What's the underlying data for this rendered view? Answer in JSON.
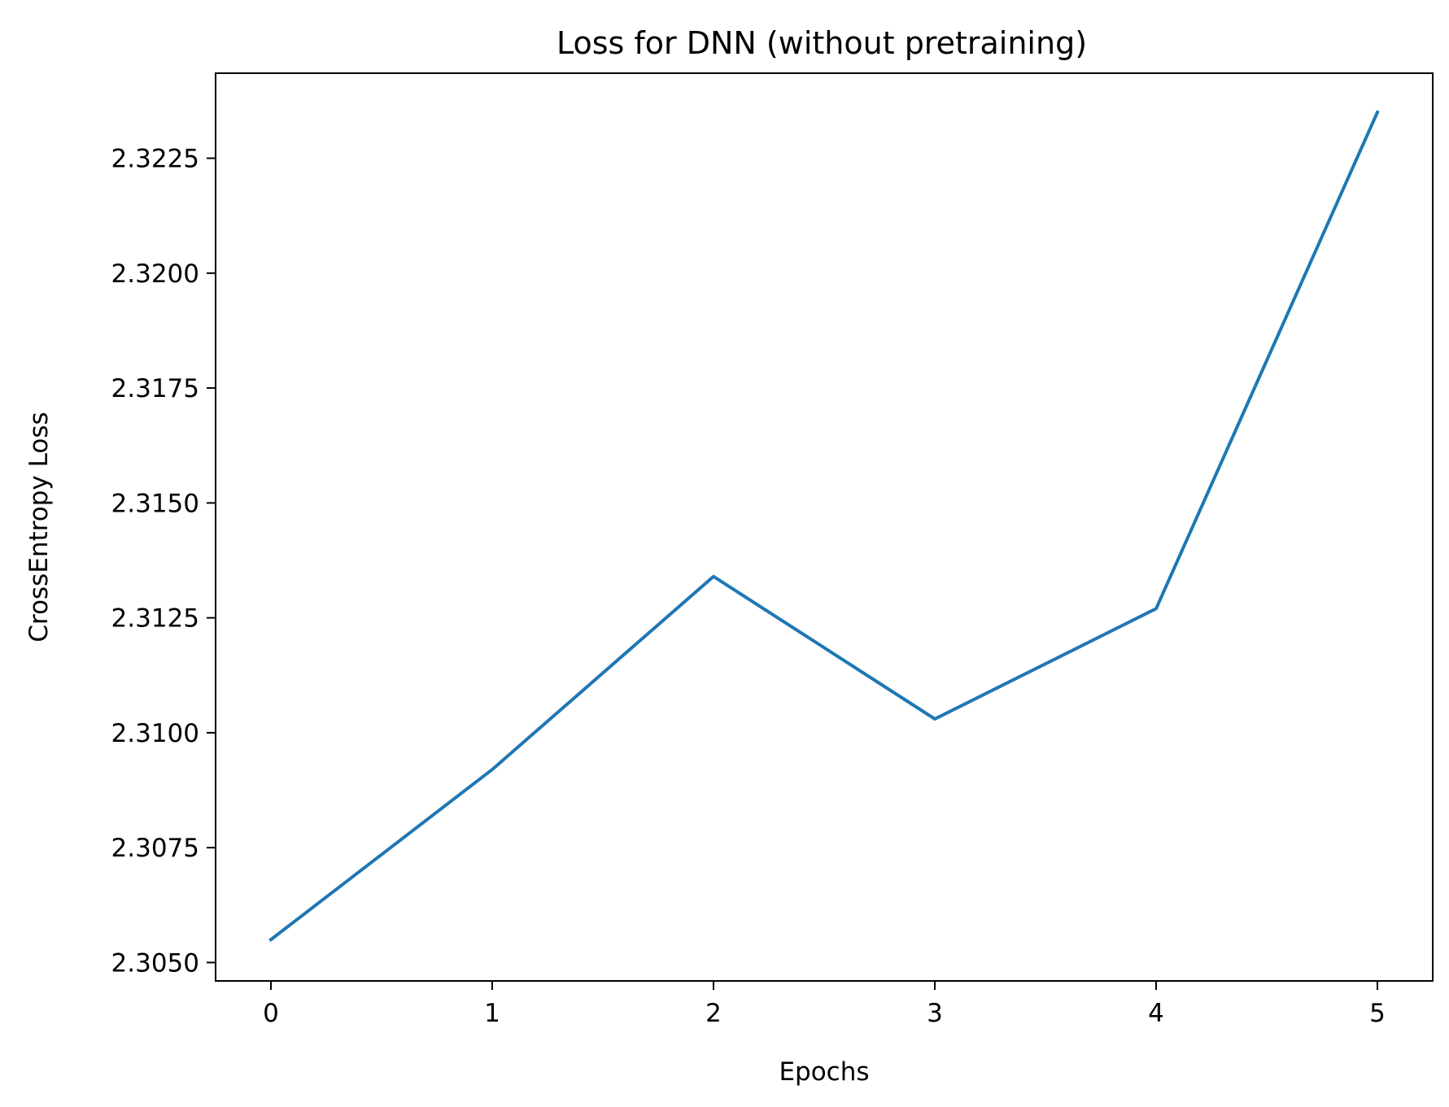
{
  "chart_data": {
    "type": "line",
    "title": "Loss for DNN (without pretraining)",
    "xlabel": "Epochs",
    "ylabel": "CrossEntropy Loss",
    "x": [
      0,
      1,
      2,
      3,
      4,
      5
    ],
    "series": [
      {
        "values": [
          2.3055,
          2.3092,
          2.3134,
          2.3103,
          2.3127,
          2.3235
        ],
        "color": "#1f77b4"
      }
    ],
    "xlim": [
      -0.25,
      5.25
    ],
    "ylim": [
      2.3046,
      2.32435
    ],
    "xticks": [
      0,
      1,
      2,
      3,
      4,
      5
    ],
    "xtick_labels": [
      "0",
      "1",
      "2",
      "3",
      "4",
      "5"
    ],
    "yticks": [
      2.305,
      2.3075,
      2.31,
      2.3125,
      2.315,
      2.3175,
      2.32,
      2.3225
    ],
    "ytick_labels": [
      "2.3050",
      "2.3075",
      "2.3100",
      "2.3125",
      "2.3150",
      "2.3175",
      "2.3200",
      "2.3225"
    ],
    "grid": false,
    "legend": "none"
  }
}
